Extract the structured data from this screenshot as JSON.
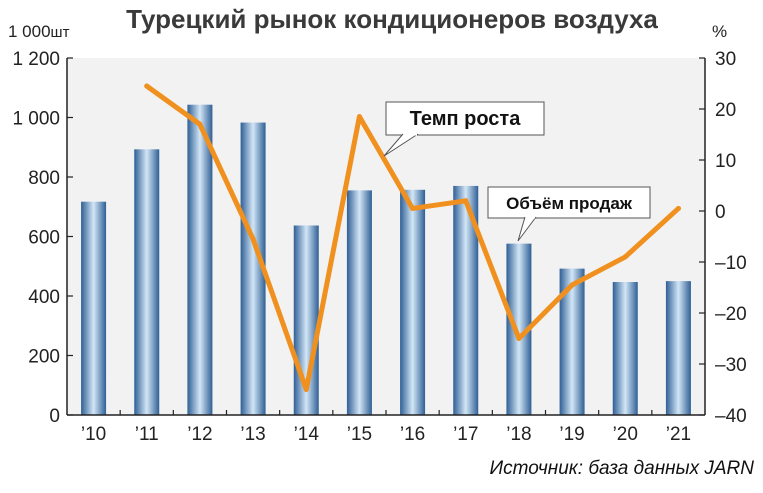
{
  "header": {
    "title": "Турецкий рынок кондиционеров воздуха",
    "left_unit_number": "1 000",
    "left_unit_suffix": "шт",
    "right_unit": "%"
  },
  "chart_data": {
    "type": "bar+line",
    "categories": [
      "’10",
      "’11",
      "’12",
      "’13",
      "’14",
      "’15",
      "’16",
      "’17",
      "’18",
      "’19",
      "’20",
      "’21"
    ],
    "series": [
      {
        "name": "Объём продаж",
        "type": "bar",
        "axis": "left",
        "values": [
          717,
          893,
          1043,
          983,
          637,
          755,
          757,
          770,
          576,
          492,
          447,
          450
        ]
      },
      {
        "name": "Темп роста",
        "type": "line",
        "axis": "right",
        "values": [
          null,
          24.5,
          17,
          -5.5,
          -35,
          18.5,
          0.5,
          2,
          -25,
          -14.5,
          -9,
          0.5
        ]
      }
    ],
    "left_axis": {
      "ticks": [
        "0",
        "200",
        "400",
        "600",
        "800",
        "1 000",
        "1 200"
      ],
      "min": 0,
      "max": 1200
    },
    "right_axis": {
      "ticks": [
        "30",
        "20",
        "10",
        "0",
        "–10",
        "–20",
        "–30",
        "–40"
      ],
      "min": -40,
      "max": 30
    },
    "callouts": {
      "growth": "Темп роста",
      "sales": "Объём продаж"
    },
    "colors": {
      "line": "#f0901e",
      "bar_dark": "#2f5f95",
      "bar_light": "#d2e6f6",
      "plot_bg": "#f2f2f2"
    }
  },
  "footer": {
    "source": "Источник: база данных JARN"
  }
}
